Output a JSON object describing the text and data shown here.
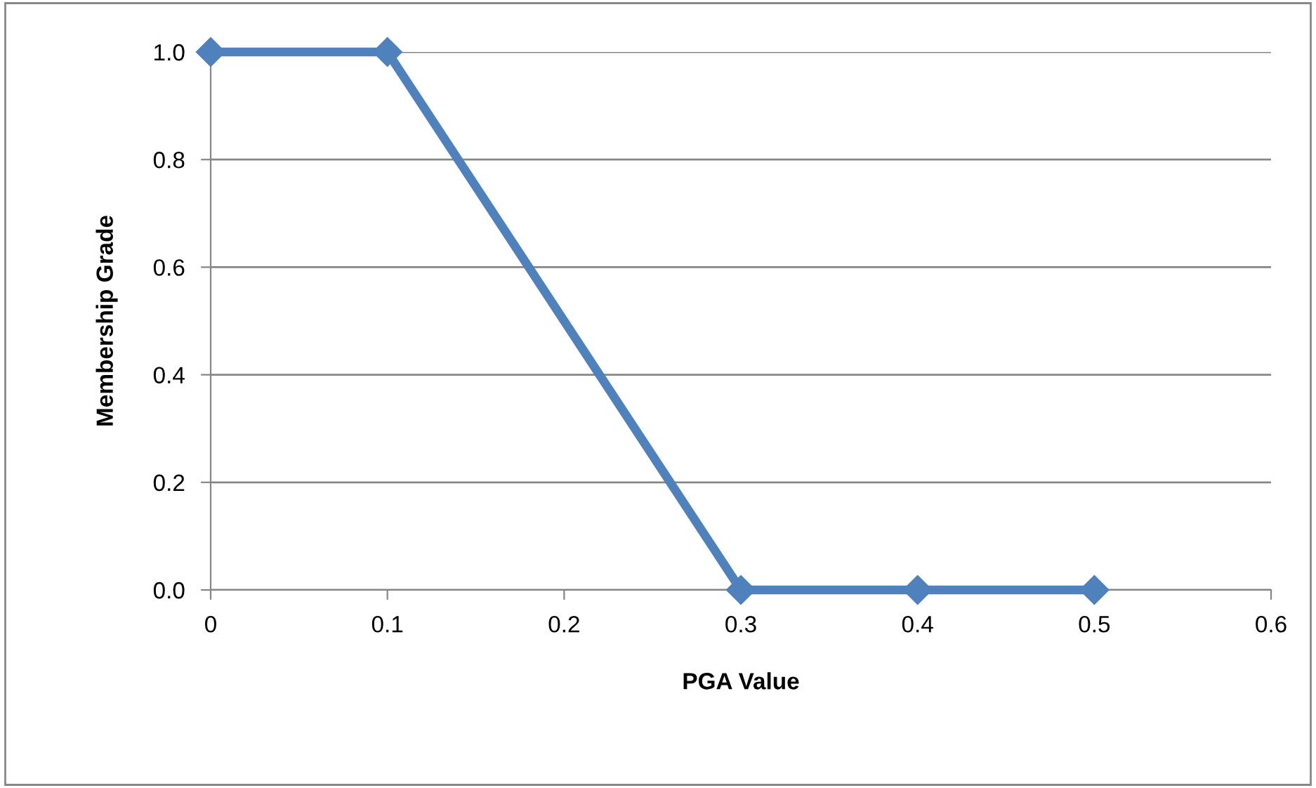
{
  "chart_data": {
    "type": "line",
    "xlabel": "PGA Value",
    "ylabel": "Membership Grade",
    "x": [
      0,
      0.1,
      0.3,
      0.4,
      0.5
    ],
    "series": [
      {
        "color": "#4f81bd",
        "values": [
          1,
          1,
          0,
          0,
          0
        ]
      }
    ],
    "xlim": [
      0,
      0.6
    ],
    "xticks": [
      0,
      0.1,
      0.2,
      0.3,
      0.4,
      0.5,
      0.6
    ],
    "ylim": [
      0,
      1
    ],
    "yticks": [
      {
        "value": 0,
        "label": "0.0"
      },
      {
        "value": 0.2,
        "label": "0.2"
      },
      {
        "value": 0.4,
        "label": "0.4"
      },
      {
        "value": 0.6,
        "label": "0.6"
      },
      {
        "value": 0.8,
        "label": "0.8"
      },
      {
        "value": 1,
        "label": "1.0"
      }
    ],
    "grid": "y",
    "marker": "diamond",
    "line_style": "solid"
  }
}
